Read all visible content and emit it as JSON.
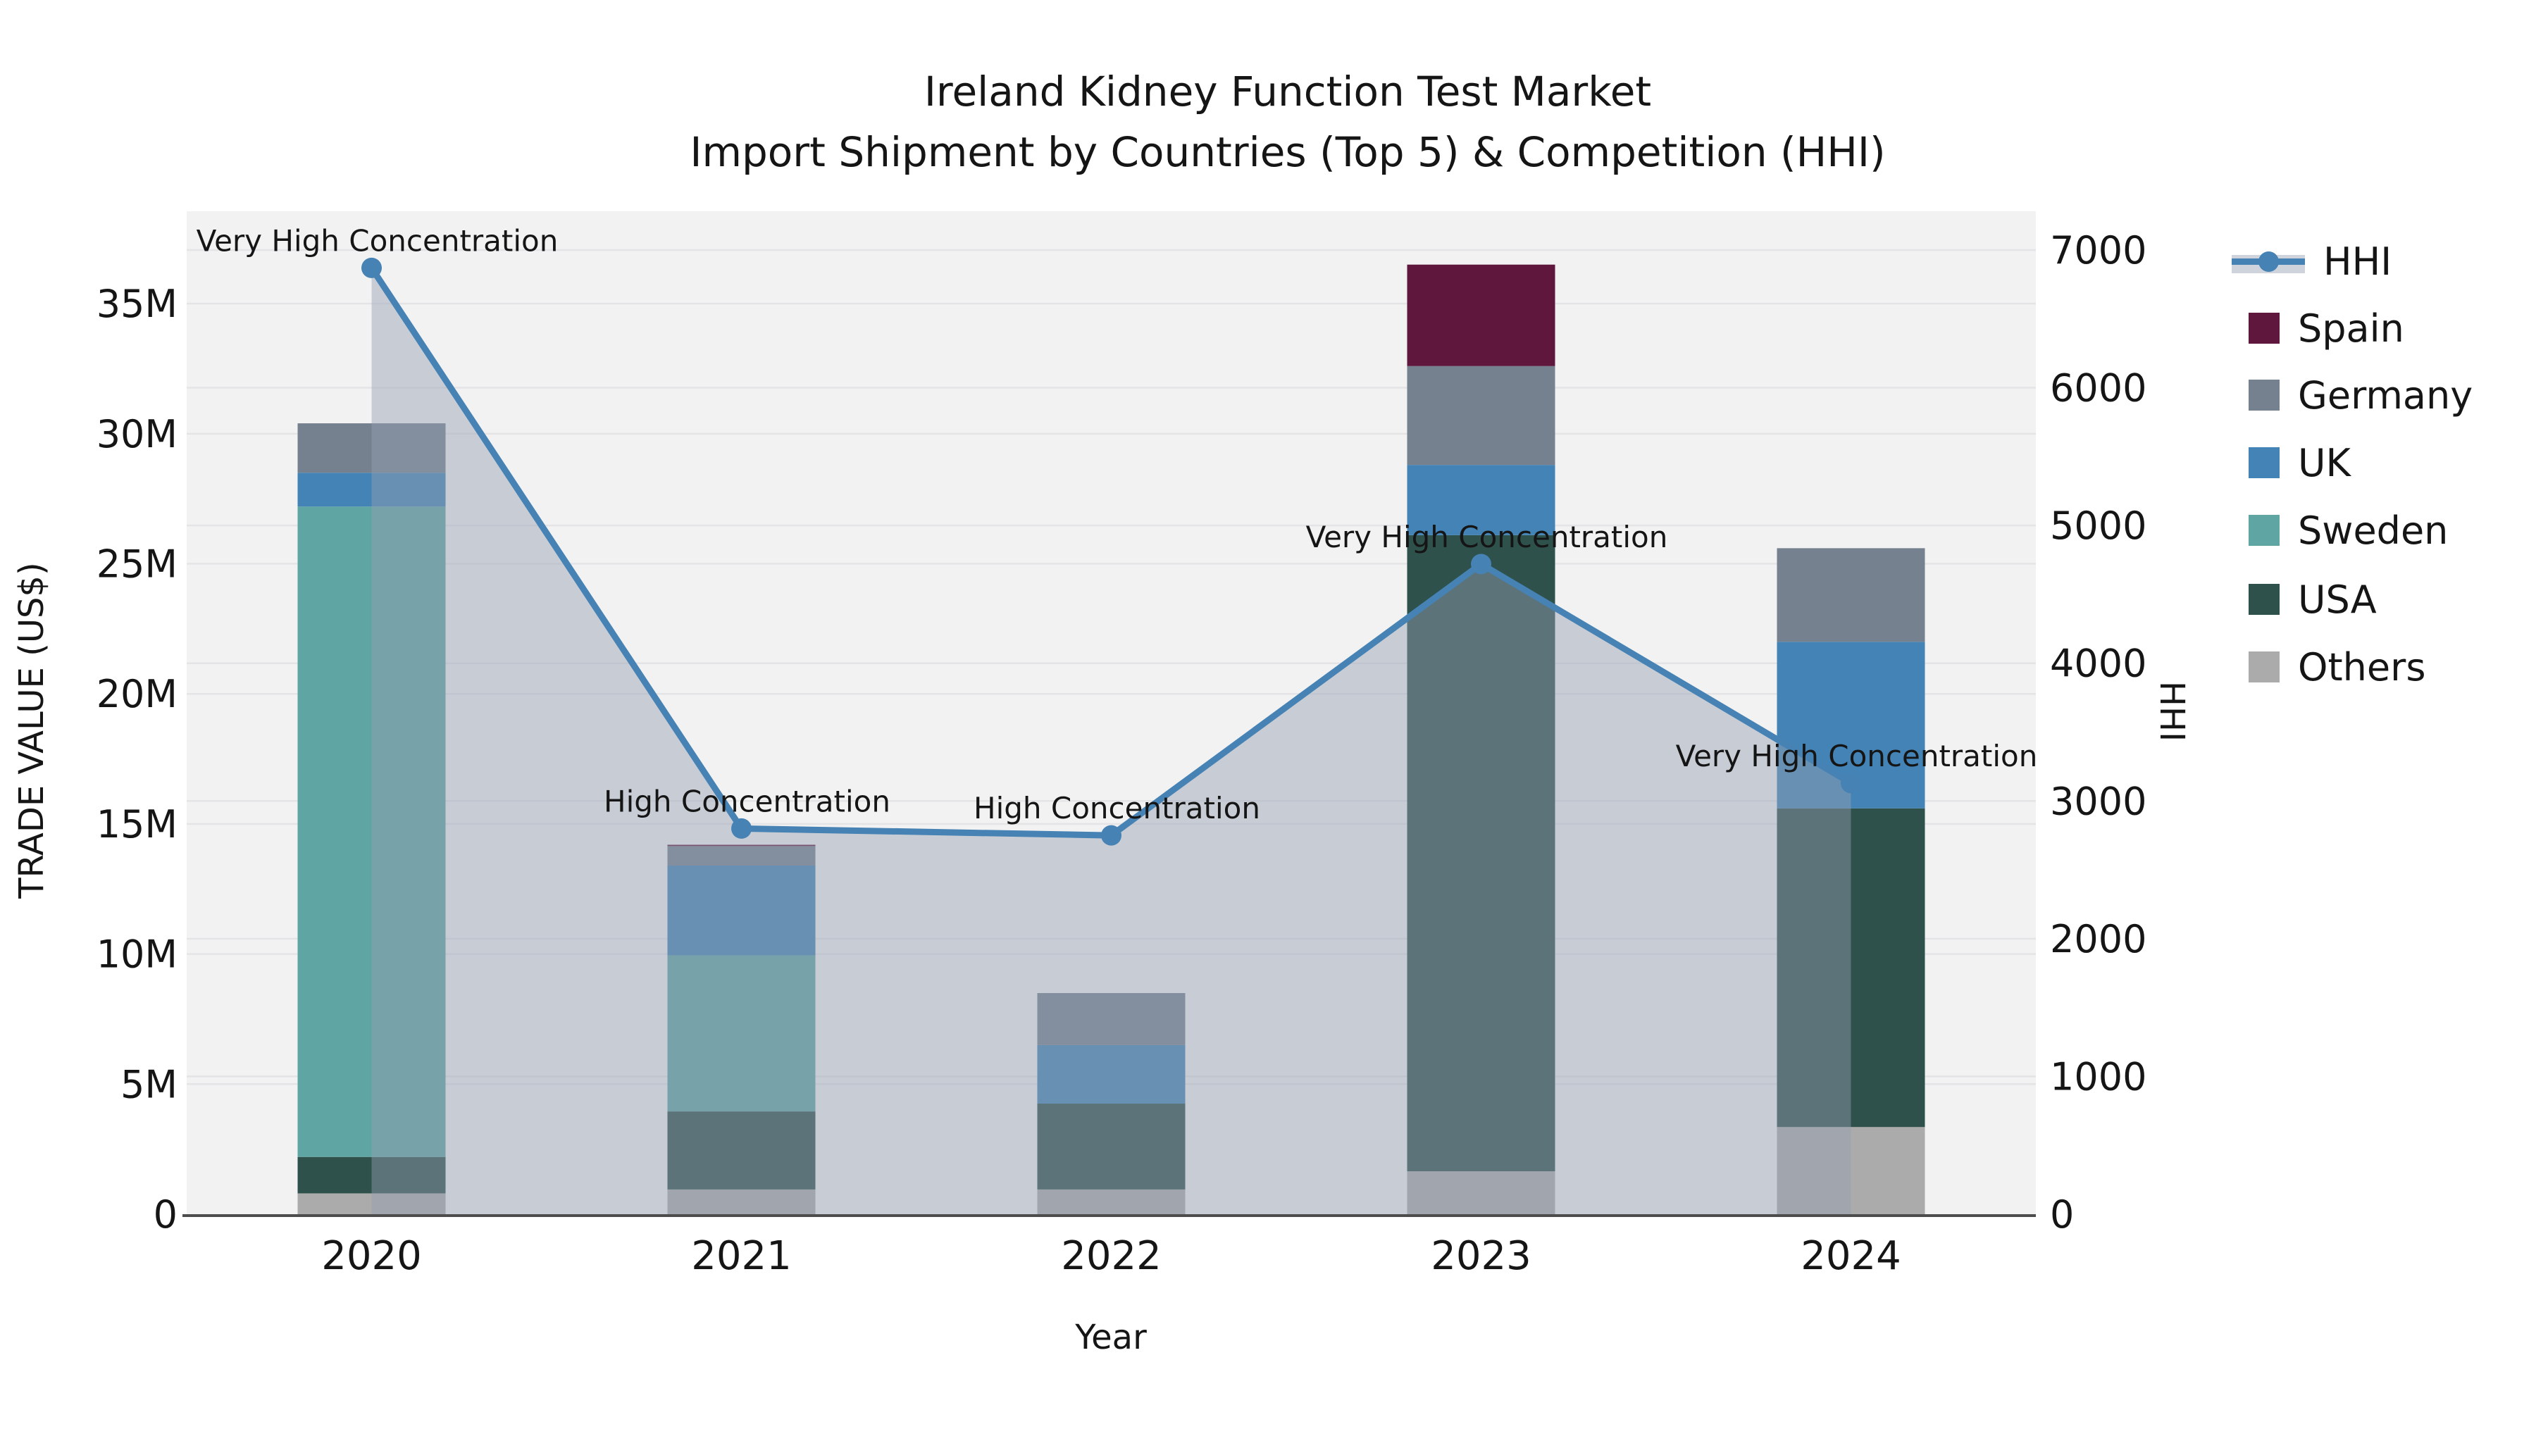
{
  "title": {
    "line1": "Ireland Kidney Function Test Market",
    "line2": "Import Shipment by Countries (Top 5) & Competition (HHI)"
  },
  "colors": {
    "plot_background": "#f2f2f2",
    "gridline": "#e4e4e7",
    "axis_line": "#4d4d4d",
    "hhi_line": "#4682b4",
    "hhi_area_fill": "rgba(148,160,178,0.45)",
    "spain": "#5f173e",
    "germany": "#75818f",
    "uk": "#4383b5",
    "sweden": "#5fa5a3",
    "usa": "#2e514c",
    "others": "#ababab"
  },
  "legend": {
    "items": [
      {
        "label": "HHI",
        "type": "line",
        "color": "#4682b4"
      },
      {
        "label": "Spain",
        "type": "patch",
        "color": "#5f173e"
      },
      {
        "label": "Germany",
        "type": "patch",
        "color": "#75818f"
      },
      {
        "label": "UK",
        "type": "patch",
        "color": "#4383b5"
      },
      {
        "label": "Sweden",
        "type": "patch",
        "color": "#5fa5a3"
      },
      {
        "label": "USA",
        "type": "patch",
        "color": "#2e514c"
      },
      {
        "label": "Others",
        "type": "patch",
        "color": "#ababab"
      }
    ]
  },
  "chart_data": {
    "type": "bar",
    "subtype": "stacked-bars-with-line-overlay",
    "title": "Ireland Kidney Function Test Market",
    "subtitle": "Import Shipment by Countries (Top 5) & Competition (HHI)",
    "xlabel": "Year",
    "categories": [
      "2020",
      "2021",
      "2022",
      "2023",
      "2024"
    ],
    "values_unit": "millions US$",
    "series": [
      {
        "name": "Others",
        "color": "#ababab",
        "values": [
          0.8,
          0.95,
          0.95,
          1.65,
          3.35
        ]
      },
      {
        "name": "USA",
        "color": "#2e514c",
        "values": [
          1.4,
          3.0,
          3.3,
          24.45,
          12.25
        ]
      },
      {
        "name": "Sweden",
        "color": "#5fa5a3",
        "values": [
          25.0,
          6.0,
          0,
          0,
          0
        ]
      },
      {
        "name": "UK",
        "color": "#4383b5",
        "values": [
          1.3,
          3.45,
          2.25,
          2.7,
          6.4
        ]
      },
      {
        "name": "Germany",
        "color": "#75818f",
        "values": [
          1.9,
          0.75,
          2.0,
          3.8,
          3.6
        ]
      },
      {
        "name": "Spain",
        "color": "#5f173e",
        "values": [
          0,
          0.05,
          0,
          3.9,
          0
        ]
      }
    ],
    "bar_totals_millions": [
      30.4,
      14.2,
      8.5,
      36.5,
      25.6
    ],
    "line": {
      "name": "HHI",
      "axis": "right",
      "color": "#4682b4",
      "area_fill": "rgba(148,160,178,0.45)",
      "values": [
        6870,
        2800,
        2750,
        4720,
        3130
      ]
    },
    "annotations": [
      {
        "category": "2020",
        "text": "Very High Concentration"
      },
      {
        "category": "2021",
        "text": "High Concentration"
      },
      {
        "category": "2022",
        "text": "High Concentration"
      },
      {
        "category": "2023",
        "text": "Very High Concentration"
      },
      {
        "category": "2024",
        "text": "Very High Concentration"
      }
    ],
    "left_axis": {
      "label": "TRADE VALUE (US$)",
      "ticks": [
        {
          "value": 0,
          "label": "0"
        },
        {
          "value": 5,
          "label": "5M"
        },
        {
          "value": 10,
          "label": "10M"
        },
        {
          "value": 15,
          "label": "15M"
        },
        {
          "value": 20,
          "label": "20M"
        },
        {
          "value": 25,
          "label": "25M"
        },
        {
          "value": 30,
          "label": "30M"
        },
        {
          "value": 35,
          "label": "35M"
        }
      ],
      "range_millions": [
        0,
        38.55
      ],
      "grid": true
    },
    "right_axis": {
      "label": "HHI",
      "ticks": [
        {
          "value": 0,
          "label": "0"
        },
        {
          "value": 1000,
          "label": "1000"
        },
        {
          "value": 2000,
          "label": "2000"
        },
        {
          "value": 3000,
          "label": "3000"
        },
        {
          "value": 4000,
          "label": "4000"
        },
        {
          "value": 5000,
          "label": "5000"
        },
        {
          "value": 6000,
          "label": "6000"
        },
        {
          "value": 7000,
          "label": "7000"
        }
      ],
      "range": [
        0,
        7281
      ],
      "grid": true
    },
    "legend_position": "right-outside"
  }
}
